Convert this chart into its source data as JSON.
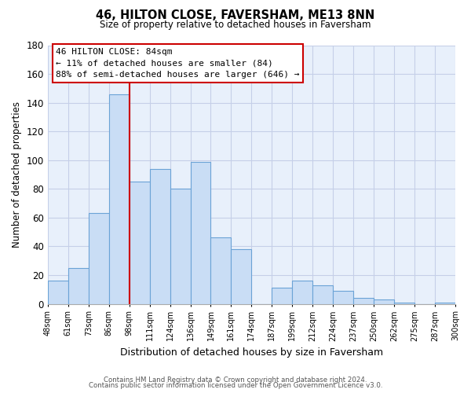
{
  "title": "46, HILTON CLOSE, FAVERSHAM, ME13 8NN",
  "subtitle": "Size of property relative to detached houses in Faversham",
  "xlabel": "Distribution of detached houses by size in Faversham",
  "ylabel": "Number of detached properties",
  "bar_labels": [
    "48sqm",
    "61sqm",
    "73sqm",
    "86sqm",
    "98sqm",
    "111sqm",
    "124sqm",
    "136sqm",
    "149sqm",
    "161sqm",
    "174sqm",
    "187sqm",
    "199sqm",
    "212sqm",
    "224sqm",
    "237sqm",
    "250sqm",
    "262sqm",
    "275sqm",
    "287sqm",
    "300sqm"
  ],
  "bar_values": [
    16,
    25,
    63,
    146,
    85,
    94,
    80,
    99,
    46,
    38,
    0,
    11,
    16,
    13,
    9,
    4,
    3,
    1,
    0,
    1
  ],
  "bar_color": "#c9ddf5",
  "bar_edge_color": "#6ba3d6",
  "vline_x": 3.5,
  "vline_color": "#cc0000",
  "ylim": [
    0,
    180
  ],
  "yticks": [
    0,
    20,
    40,
    60,
    80,
    100,
    120,
    140,
    160,
    180
  ],
  "annotation_title": "46 HILTON CLOSE: 84sqm",
  "annotation_line1": "← 11% of detached houses are smaller (84)",
  "annotation_line2": "88% of semi-detached houses are larger (646) →",
  "footer_line1": "Contains HM Land Registry data © Crown copyright and database right 2024.",
  "footer_line2": "Contains public sector information licensed under the Open Government Licence v3.0.",
  "background_color": "#ffffff",
  "plot_bg_color": "#e8f0fb",
  "grid_color": "#c5cfe8"
}
